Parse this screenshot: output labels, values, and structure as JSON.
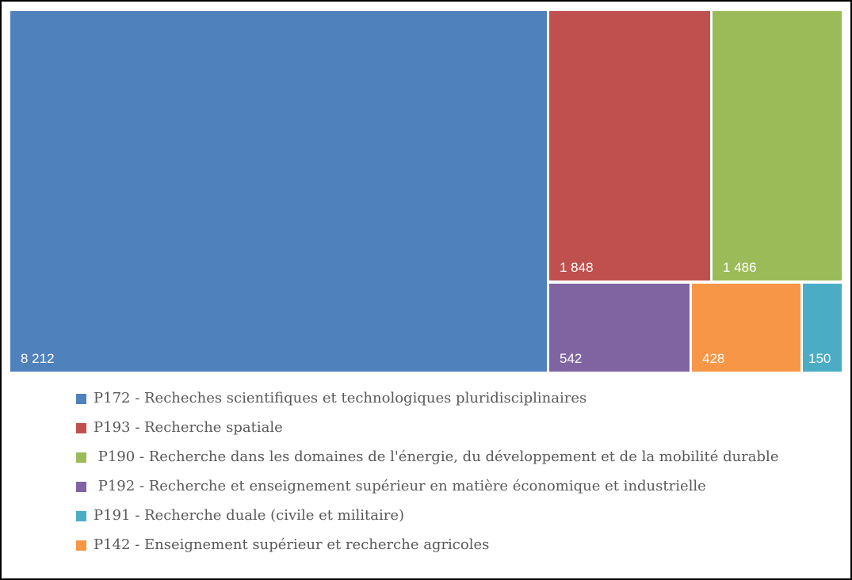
{
  "figure": {
    "background": "#FFFFFF",
    "border_color": "#000000",
    "value_text_color": "#FFFFFF",
    "legend_text_color": "#595959"
  },
  "chart_data": {
    "type": "treemap",
    "title": "",
    "legend_position": "bottom",
    "value_number_format": "space-thousands",
    "items": [
      {
        "code": "P172",
        "legend_label": "P172 - Recheches scientifiques et technologiques pluridisciplinaires",
        "value": 8212,
        "value_label": "8 212",
        "color": "#4F81BD"
      },
      {
        "code": "P193",
        "legend_label": "P193 - Recherche spatiale",
        "value": 1848,
        "value_label": "1 848",
        "color": "#C0504D"
      },
      {
        "code": "P190",
        "legend_label": " P190 - Recherche dans les domaines de l'énergie, du développement et de la mobilité durable",
        "value": 1486,
        "value_label": "1 486",
        "color": "#9BBB59"
      },
      {
        "code": "P192",
        "legend_label": " P192 - Recherche et enseignement supérieur en matière économique et industrielle",
        "value": 542,
        "value_label": "542",
        "color": "#8064A2"
      },
      {
        "code": "P191",
        "legend_label": "P191 - Recherche duale (civile et militaire)",
        "value": 150,
        "value_label": "150",
        "color": "#4BACC6"
      },
      {
        "code": "P142",
        "legend_label": "P142 - Enseignement supérieur et recherche agricoles",
        "value": 428,
        "value_label": "428",
        "color": "#F79646"
      }
    ]
  }
}
